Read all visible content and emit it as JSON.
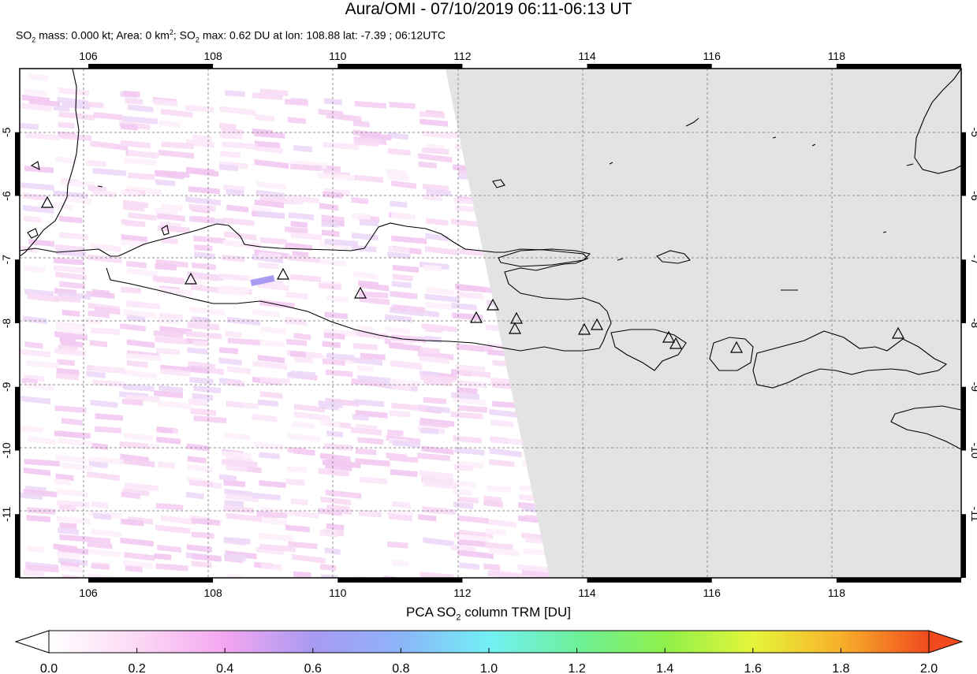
{
  "title": "Aura/OMI - 07/10/2019 06:11-06:13 UT",
  "subtitle": {
    "p1": "SO",
    "s1": "2",
    "p2": " mass: 0.000 kt; Area: 0 km",
    "sup": "2",
    "p3": "; SO",
    "s2": "2",
    "p4": " max: 0.62 DU at lon: 108.88 lat: -7.39 ; 06:12UTC"
  },
  "map": {
    "lon_range": [
      104.9,
      120.0
    ],
    "lat_range": [
      -12.0,
      -4.0
    ],
    "lon_ticks": [
      "106",
      "108",
      "110",
      "112",
      "114",
      "116",
      "118"
    ],
    "lat_ticks": [
      "-5",
      "-6",
      "-7",
      "-8",
      "-9",
      "-10",
      "-11"
    ],
    "grid": "dashed",
    "no_data_color": "#e3e3e3",
    "volcano_marker": "triangle"
  },
  "colorbar": {
    "label_p1": "PCA SO",
    "label_sub": "2",
    "label_p2": " column TRM [DU]",
    "ticks": [
      "0.0",
      "0.2",
      "0.4",
      "0.6",
      "0.8",
      "1.0",
      "1.2",
      "1.4",
      "1.6",
      "1.8",
      "2.0"
    ],
    "range": [
      0.0,
      2.0
    ],
    "colors": [
      "#ffffff",
      "#fcd9f5",
      "#f3a6f0",
      "#a99af2",
      "#8cb4f8",
      "#72f0f5",
      "#6df09a",
      "#8ef04a",
      "#e5f53a",
      "#f7b02a",
      "#f04a1e"
    ]
  }
}
